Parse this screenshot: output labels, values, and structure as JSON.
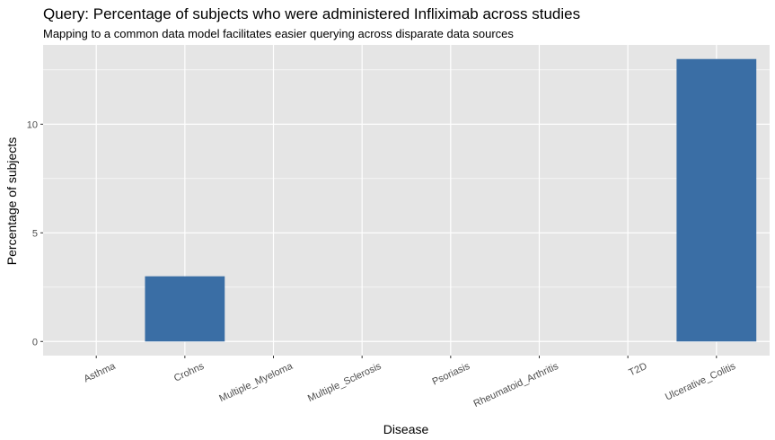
{
  "chart_data": {
    "type": "bar",
    "title": "Query: Percentage of subjects who were administered Infliximab across studies",
    "subtitle": "Mapping to a common data model facilitates easier querying across disparate data sources",
    "xlabel": "Disease",
    "ylabel": "Percentage of subjects",
    "categories": [
      "Asthma",
      "Crohns",
      "Multiple_Myeloma",
      "Multiple_Sclerosis",
      "Psoriasis",
      "Rheumatoid_Arthritis",
      "T2D",
      "Ulcerative_Colitis"
    ],
    "values": [
      0,
      3,
      0,
      0,
      0,
      0,
      0,
      13
    ],
    "ylim": [
      -0.65,
      13.65
    ],
    "yticks": [
      0,
      5,
      10
    ],
    "ytick_labels": [
      "0",
      "5",
      "10"
    ],
    "grid": true,
    "colors": {
      "bar": "#3a6ea5",
      "panel": "#e5e5e5",
      "grid": "#ffffff",
      "tick": "#333333"
    }
  }
}
